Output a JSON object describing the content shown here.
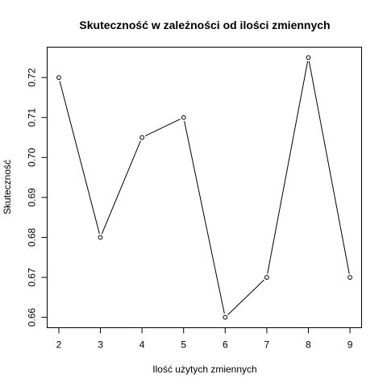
{
  "chart_data": {
    "type": "line",
    "title": "Skuteczność w zależności od ilości zmiennych",
    "xlabel": "Ilość użytych zmiennych",
    "ylabel": "Skuteczność",
    "x": [
      2,
      3,
      4,
      5,
      6,
      7,
      8,
      9
    ],
    "y": [
      0.72,
      0.68,
      0.705,
      0.71,
      0.66,
      0.67,
      0.725,
      0.67
    ],
    "x_ticks": [
      "2",
      "3",
      "4",
      "5",
      "6",
      "7",
      "8",
      "9"
    ],
    "y_ticks": [
      "0.66",
      "0.67",
      "0.68",
      "0.69",
      "0.70",
      "0.71",
      "0.72"
    ],
    "xlim": [
      1.72,
      9.28
    ],
    "ylim": [
      0.6574,
      0.7276
    ],
    "markers": "open-circle",
    "grid": false,
    "legend": "none",
    "colors": {
      "line": "#000000",
      "marker_fill": "#ffffff",
      "frame": "#000000"
    }
  }
}
